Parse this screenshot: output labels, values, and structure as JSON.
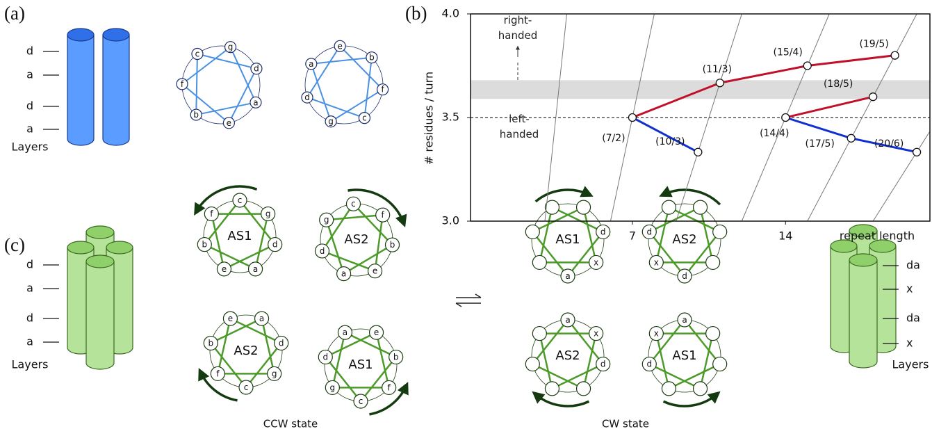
{
  "panel_labels": [
    "(a)",
    "(b)",
    "(c)"
  ],
  "panel_a": {
    "layers": [
      "d",
      "a",
      "d",
      "a"
    ],
    "layers_title": "Layers",
    "wheels": [
      {
        "positions": [
          "g",
          "d",
          "a",
          "e",
          "b",
          "f",
          "c"
        ]
      },
      {
        "positions": [
          "e",
          "b",
          "f",
          "c",
          "g",
          "d",
          "a"
        ]
      }
    ]
  },
  "chart_data": {
    "type": "line",
    "ylabel": "# residues / turn",
    "xlabel": "repeat length",
    "xlim": [
      -0.4,
      20.6
    ],
    "ylim": [
      3,
      4
    ],
    "xticks": [
      7,
      14
    ],
    "yticks": [
      {
        "value": 3,
        "label": "3.0"
      },
      3.5,
      {
        "value": 4,
        "label": "4.0"
      }
    ],
    "reference_line": 3.5,
    "shaded_band": [
      3.59,
      3.68
    ],
    "annotations": [
      "right-handed",
      "left-handed"
    ],
    "series": [
      {
        "color": "#c0102a",
        "x": [
          7,
          11,
          15,
          19
        ],
        "values": [
          3.5,
          3.667,
          3.75,
          3.8
        ]
      },
      {
        "color": "#c0102a",
        "x": [
          14,
          18
        ],
        "values": [
          3.5,
          3.6
        ]
      },
      {
        "color": "#1030d0",
        "x": [
          7,
          10
        ],
        "values": [
          3.5,
          3.333
        ]
      },
      {
        "color": "#1030d0",
        "x": [
          14,
          17,
          20
        ],
        "values": [
          3.5,
          3.4,
          3.333
        ]
      }
    ],
    "points": [
      {
        "label": "(7/2)",
        "x": 7,
        "y": 3.5
      },
      {
        "label": "(10/3)",
        "x": 10,
        "y": 3.333
      },
      {
        "label": "(11/3)",
        "x": 11,
        "y": 3.667
      },
      {
        "label": "(14/4)",
        "x": 14,
        "y": 3.5
      },
      {
        "label": "(15/4)",
        "x": 15,
        "y": 3.75
      },
      {
        "label": "(17/5)",
        "x": 17,
        "y": 3.4
      },
      {
        "label": "(18/5)",
        "x": 18,
        "y": 3.6
      },
      {
        "label": "(19/5)",
        "x": 19,
        "y": 3.8
      },
      {
        "label": "(20/6)",
        "x": 20,
        "y": 3.333
      }
    ]
  },
  "panel_c": {
    "left_layers": [
      "d",
      "a",
      "d",
      "a"
    ],
    "left_layers_title": "Layers",
    "right_layers": [
      "da",
      "x",
      "da",
      "x"
    ],
    "right_layers_title": "Layers",
    "ccw": {
      "label": "CCW state",
      "wheels": [
        {
          "name": "AS1",
          "positions": [
            "c",
            "g",
            "d",
            "a",
            "e",
            "b",
            "f"
          ]
        },
        {
          "name": "AS2",
          "positions": [
            "c",
            "f",
            "b",
            "e",
            "a",
            "d",
            "g"
          ]
        },
        {
          "name": "AS2",
          "positions": [
            "c",
            "f",
            "b",
            "e",
            "a",
            "d",
            "g"
          ]
        },
        {
          "name": "AS1",
          "positions": [
            "c",
            "g",
            "d",
            "a",
            "e",
            "b",
            "f"
          ]
        }
      ]
    },
    "cw": {
      "label": "CW state",
      "wheels": [
        {
          "name": "AS1",
          "positions": [
            "a",
            null,
            null,
            null,
            null,
            "d",
            "x"
          ]
        },
        {
          "name": "AS2",
          "positions": [
            "d",
            "x",
            "d",
            null,
            null,
            null,
            null
          ]
        },
        {
          "name": "AS2",
          "positions": [
            "a",
            "x",
            "d",
            null,
            null,
            null,
            null
          ]
        },
        {
          "name": "AS1",
          "positions": [
            "a",
            null,
            null,
            null,
            null,
            "d",
            "x"
          ]
        }
      ]
    }
  }
}
